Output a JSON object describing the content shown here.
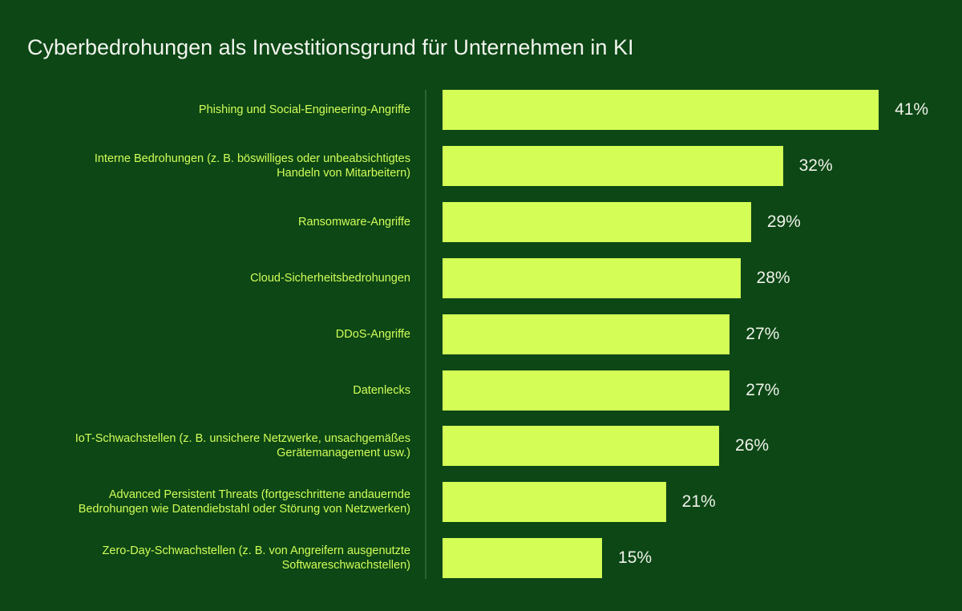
{
  "chart_data": {
    "type": "bar",
    "orientation": "horizontal",
    "title": "Cyberbedrohungen als Investitionsgrund für Unternehmen in KI",
    "categories": [
      "Phishing und Social-Engineering-Angriffe",
      "Interne Bedrohungen (z. B. böswilliges oder unbeabsichtigtes\nHandeln von Mitarbeitern)",
      "Ransomware-Angriffe",
      "Cloud-Sicherheitsbedrohungen",
      "DDoS-Angriffe",
      "Datenlecks",
      "IoT-Schwachstellen (z. B. unsichere Netzwerke, unsachgemäßes\nGerätemanagement usw.)",
      "Advanced Persistent Threats (fortgeschrittene andauernde\nBedrohungen wie Datendiebstahl oder Störung von Netzwerken)",
      "Zero-Day-Schwachstellen (z. B. von Angreifern ausgenutzte\nSoftwareschwachstellen)"
    ],
    "values": [
      41,
      32,
      29,
      28,
      27,
      27,
      26,
      21,
      15
    ],
    "data_labels": [
      "41%",
      "32%",
      "29%",
      "28%",
      "27%",
      "27%",
      "26%",
      "21%",
      "15%"
    ],
    "unit": "%",
    "grid": false,
    "colors": {
      "background": "#0c4715",
      "bar": "#d4fe56",
      "label": "#d2fd58",
      "value": "#f0f2ea"
    }
  }
}
